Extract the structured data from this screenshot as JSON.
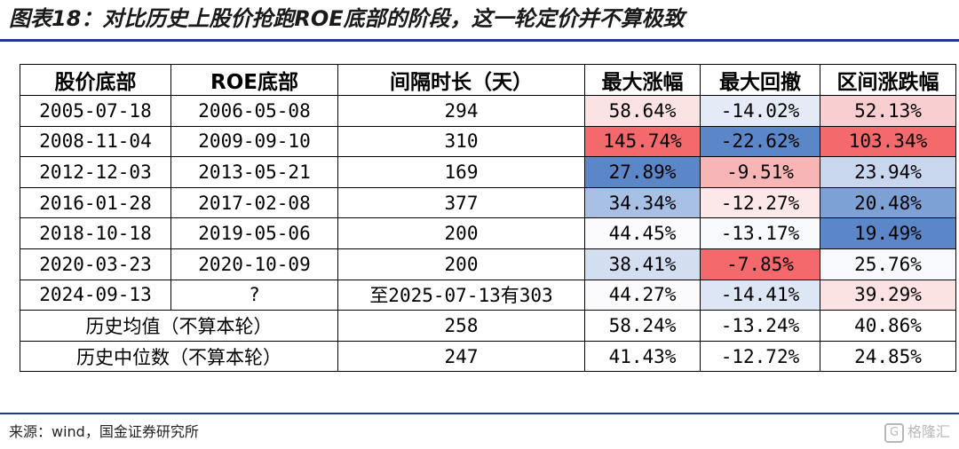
{
  "title": "图表18：对比历史上股价抢跑ROE底部的阶段，这一轮定价并不算极致",
  "table": {
    "headers": [
      "股价底部",
      "ROE底部",
      "间隔时长（天）",
      "最大涨幅",
      "最大回撤",
      "区间涨跌幅"
    ],
    "rows": [
      {
        "cells": [
          "2005-07-18",
          "2006-05-08",
          "294",
          "58.64%",
          "-14.02%",
          "52.13%"
        ],
        "colors": [
          "#ffffff",
          "#ffffff",
          "#ffffff",
          "#fbe2e3",
          "#e4ebf6",
          "#f9ced0"
        ]
      },
      {
        "cells": [
          "2008-11-04",
          "2009-09-10",
          "310",
          "145.74%",
          "-22.62%",
          "103.34%"
        ],
        "colors": [
          "#ffffff",
          "#ffffff",
          "#ffffff",
          "#f46a6c",
          "#5b86c8",
          "#f46a6c"
        ]
      },
      {
        "cells": [
          "2012-12-03",
          "2013-05-21",
          "169",
          "27.89%",
          "-9.51%",
          "23.94%"
        ],
        "colors": [
          "#ffffff",
          "#ffffff",
          "#ffffff",
          "#5b86c8",
          "#f8b5b6",
          "#c9d7ee"
        ]
      },
      {
        "cells": [
          "2016-01-28",
          "2017-02-08",
          "377",
          "34.34%",
          "-12.27%",
          "20.48%"
        ],
        "colors": [
          "#ffffff",
          "#ffffff",
          "#ffffff",
          "#a7c0e4",
          "#fce8e8",
          "#7da0d5"
        ]
      },
      {
        "cells": [
          "2018-10-18",
          "2019-05-06",
          "200",
          "44.45%",
          "-13.17%",
          "19.49%"
        ],
        "colors": [
          "#ffffff",
          "#ffffff",
          "#ffffff",
          "#fbfbfe",
          "#f8f9fc",
          "#5b86c8"
        ]
      },
      {
        "cells": [
          "2020-03-23",
          "2020-10-09",
          "200",
          "38.41%",
          "-7.85%",
          "25.76%"
        ],
        "colors": [
          "#ffffff",
          "#ffffff",
          "#ffffff",
          "#d3def1",
          "#f46a6c",
          "#f8f9fc"
        ]
      },
      {
        "cells": [
          "2024-09-13",
          "?",
          "至2025-07-13有303",
          "44.27%",
          "-14.41%",
          "39.29%"
        ],
        "colors": [
          "#ffffff",
          "#ffffff",
          "#ffffff",
          "#fbfbfe",
          "#dde6f4",
          "#fbe2e3"
        ]
      }
    ],
    "summary_rows": [
      {
        "label": "历史均值（不算本轮）",
        "cells": [
          "258",
          "58.24%",
          "-13.24%",
          "40.86%"
        ]
      },
      {
        "label": "历史中位数（不算本轮）",
        "cells": [
          "247",
          "41.43%",
          "-12.72%",
          "24.85%"
        ]
      }
    ]
  },
  "source": "来源：wind，国金证券研究所",
  "watermark": "格隆汇",
  "colors": {
    "accent_rule": "#1f3a93",
    "high_red": "#f46a6c",
    "high_blue": "#5b86c8"
  }
}
